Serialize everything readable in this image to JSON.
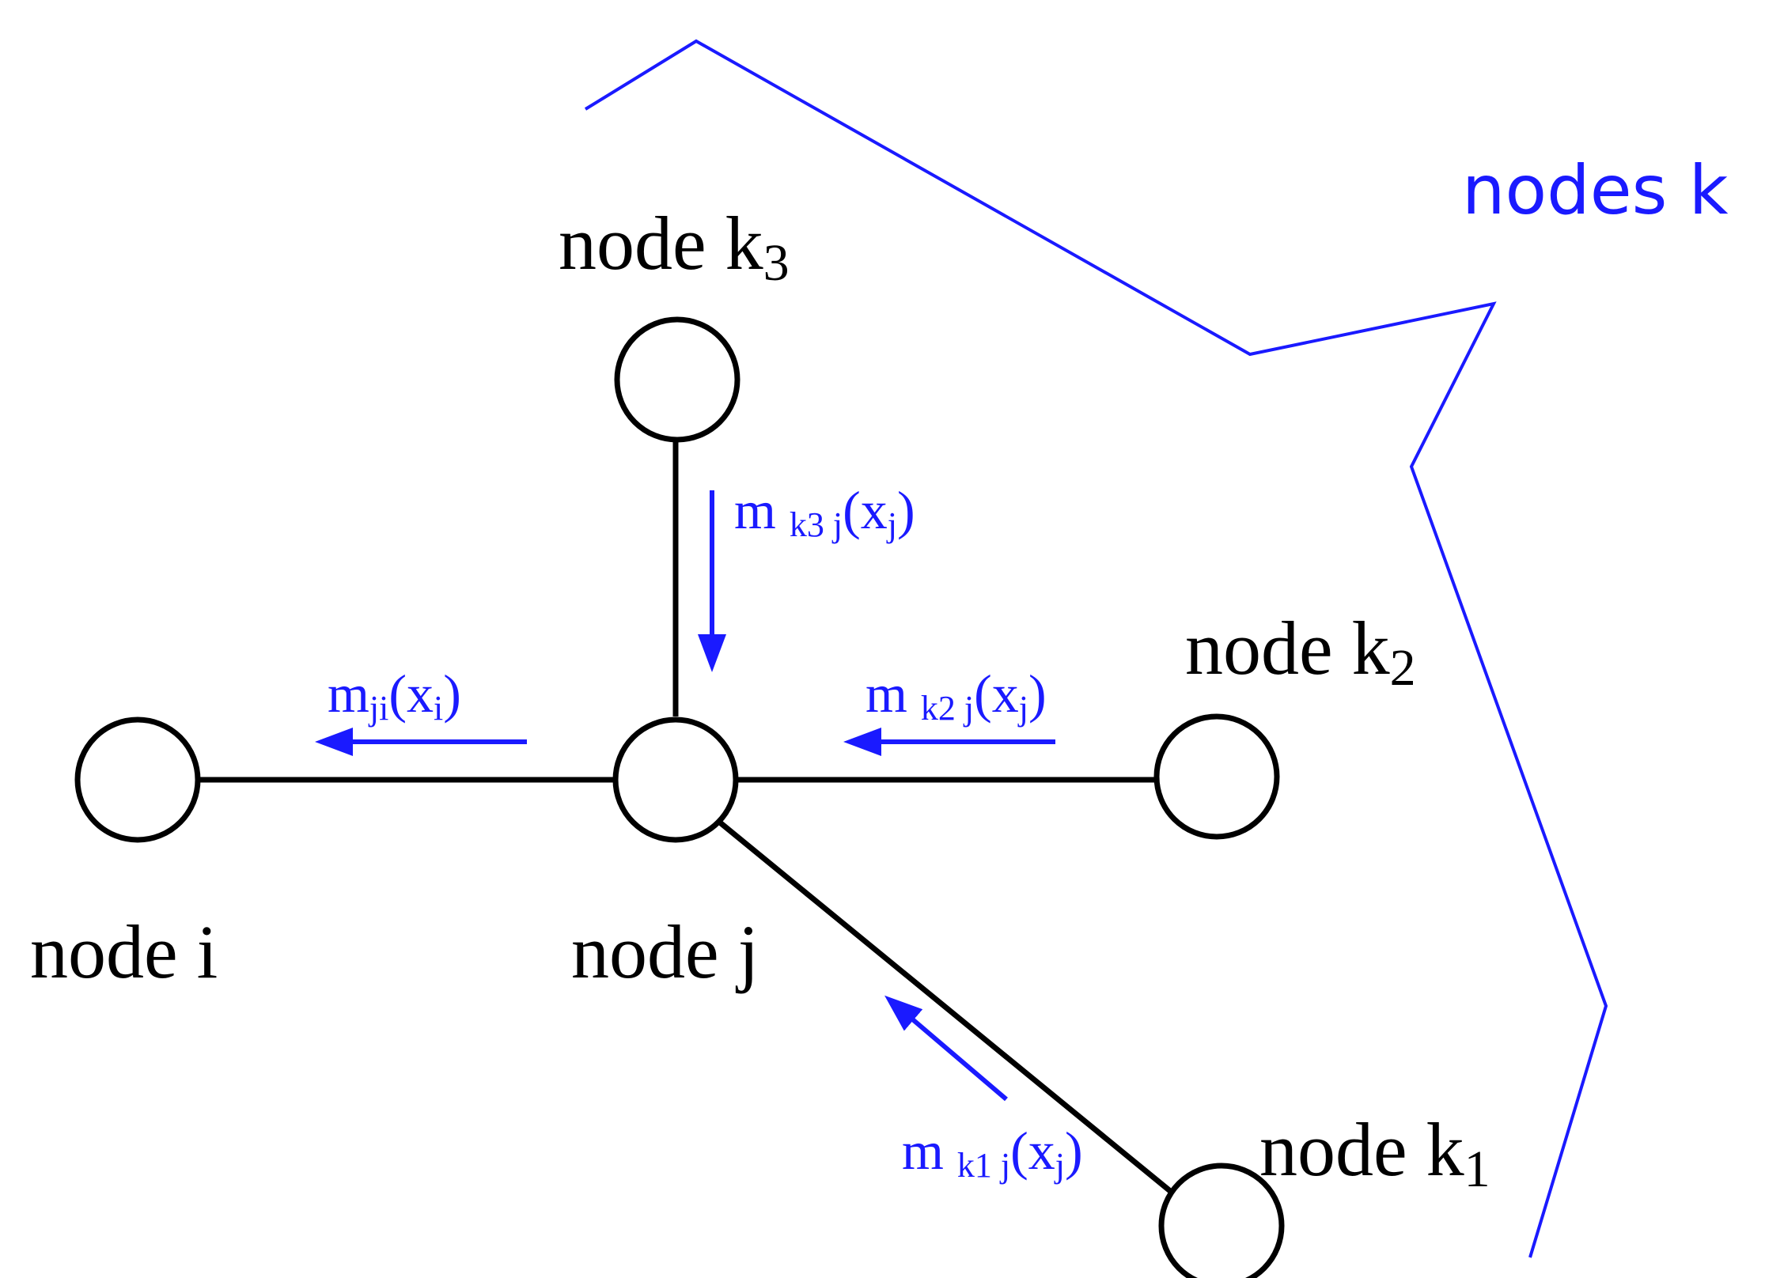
{
  "colors": {
    "ink": "#000000",
    "accent": "#1a1aff"
  },
  "group": {
    "label": "nodes k"
  },
  "nodes": {
    "i": {
      "label": "node i"
    },
    "j": {
      "label": "node j"
    },
    "k1": {
      "label": "node k",
      "sub": "1"
    },
    "k2": {
      "label": "node k",
      "sub": "2"
    },
    "k3": {
      "label": "node k",
      "sub": "3"
    }
  },
  "messages": {
    "ji": {
      "m": "m",
      "sub_from": "ji",
      "open": "(x",
      "sub_var": "i",
      "close": ")"
    },
    "k1j": {
      "m": "m ",
      "sub_from": "k1 j",
      "open": "(x",
      "sub_var": "j",
      "close": ")"
    },
    "k2j": {
      "m": "m ",
      "sub_from": "k2 j",
      "open": "(x",
      "sub_var": "j",
      "close": ")"
    },
    "k3j": {
      "m": "m ",
      "sub_from": "k3 j",
      "open": "(x",
      "sub_var": "j",
      "close": ")"
    }
  }
}
